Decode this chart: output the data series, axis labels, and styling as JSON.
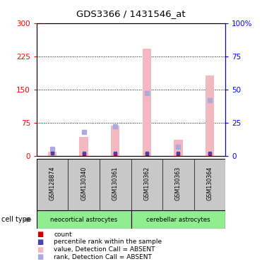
{
  "title": "GDS3366 / 1431546_at",
  "samples": [
    "GSM128874",
    "GSM130340",
    "GSM130361",
    "GSM130362",
    "GSM130363",
    "GSM130364"
  ],
  "value_bars": [
    10,
    42,
    68,
    242,
    37,
    182
  ],
  "rank_pct": [
    5,
    18,
    22,
    47,
    7,
    42
  ],
  "count_vals": [
    7,
    5,
    5,
    5,
    5,
    5
  ],
  "percentile_pct": [
    2,
    2,
    2,
    2,
    2,
    2
  ],
  "ylim_left": [
    0,
    300
  ],
  "ylim_right": [
    0,
    100
  ],
  "yticks_left": [
    0,
    75,
    150,
    225,
    300
  ],
  "yticks_right": [
    0,
    25,
    50,
    75,
    100
  ],
  "bar_color": "#F4B8C1",
  "rank_color": "#AAAADD",
  "count_color": "#CC0000",
  "percentile_color": "#4444AA",
  "bg_color": "#C8C8C8",
  "cell_color": "#90EE90",
  "neocortical_label": "neocortical astrocytes",
  "cerebellar_label": "cerebellar astrocytes",
  "cell_type_label": "cell type",
  "legend_items": [
    {
      "color": "#CC0000",
      "label": "count"
    },
    {
      "color": "#4444AA",
      "label": "percentile rank within the sample"
    },
    {
      "color": "#F4B8C1",
      "label": "value, Detection Call = ABSENT"
    },
    {
      "color": "#AAAADD",
      "label": "rank, Detection Call = ABSENT"
    }
  ]
}
